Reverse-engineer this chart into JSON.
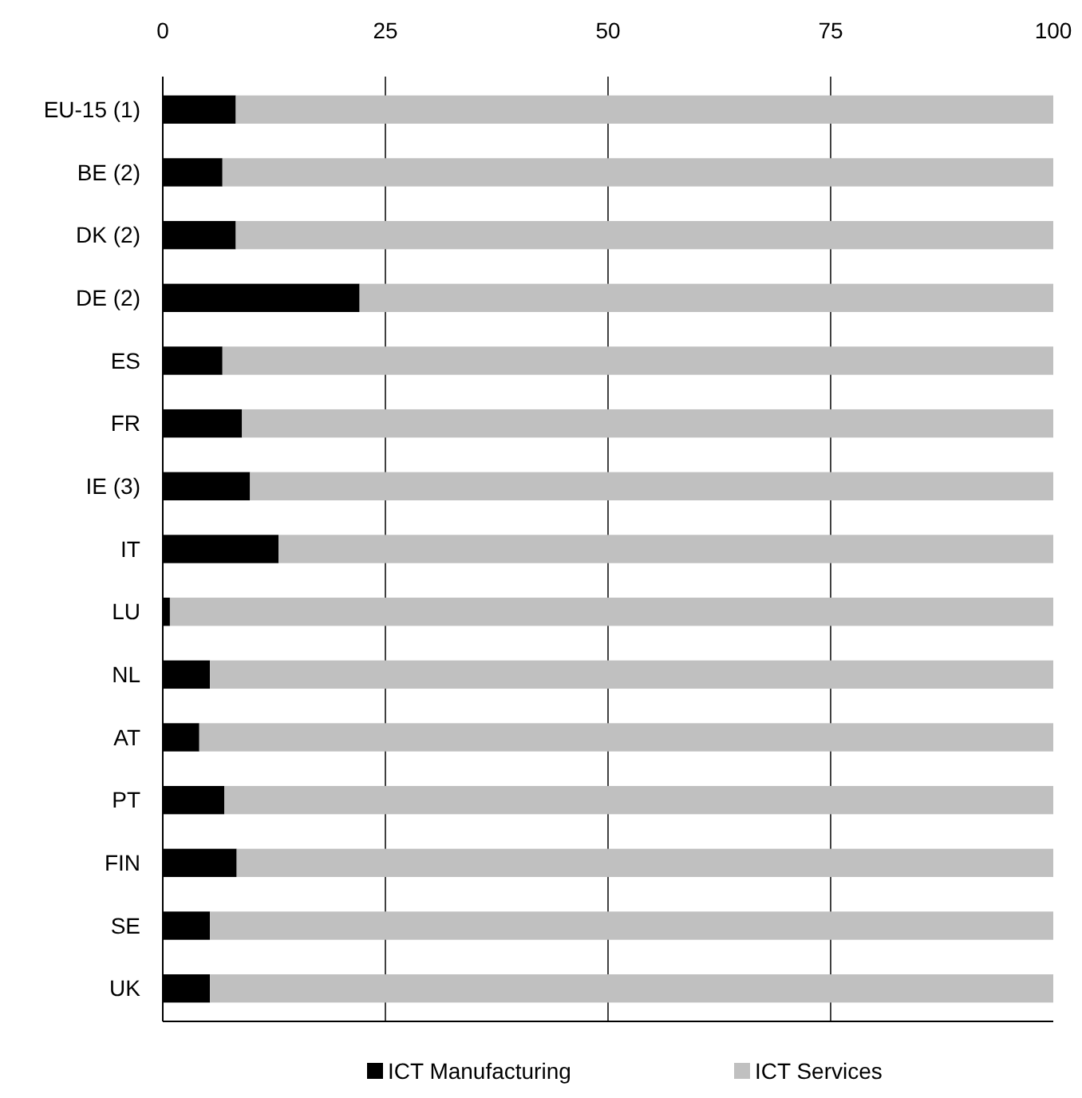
{
  "chart_data": {
    "type": "bar",
    "orientation": "horizontal",
    "stacked": true,
    "categories": [
      "EU-15 (1)",
      "BE (2)",
      "DK (2)",
      "DE (2)",
      "ES",
      "FR",
      "IE (3)",
      "IT",
      "LU",
      "NL",
      "AT",
      "PT",
      "FIN",
      "SE",
      "UK"
    ],
    "series": [
      {
        "name": "ICT Manufacturing",
        "color": "#000000",
        "values": [
          8.2,
          6.7,
          8.2,
          22.1,
          6.7,
          8.9,
          9.8,
          13.0,
          0.8,
          5.3,
          4.1,
          6.9,
          8.3,
          5.3,
          5.3
        ]
      },
      {
        "name": "ICT Services",
        "color": "#c0c0c0",
        "values": [
          91.8,
          93.3,
          91.8,
          77.9,
          93.3,
          91.1,
          90.2,
          87.0,
          99.2,
          94.7,
          95.9,
          93.1,
          91.7,
          94.7,
          94.7
        ]
      }
    ],
    "xlim": [
      0,
      100
    ],
    "xticks": [
      0,
      25,
      50,
      75,
      100
    ],
    "grid": "x",
    "legend": "bottom"
  }
}
